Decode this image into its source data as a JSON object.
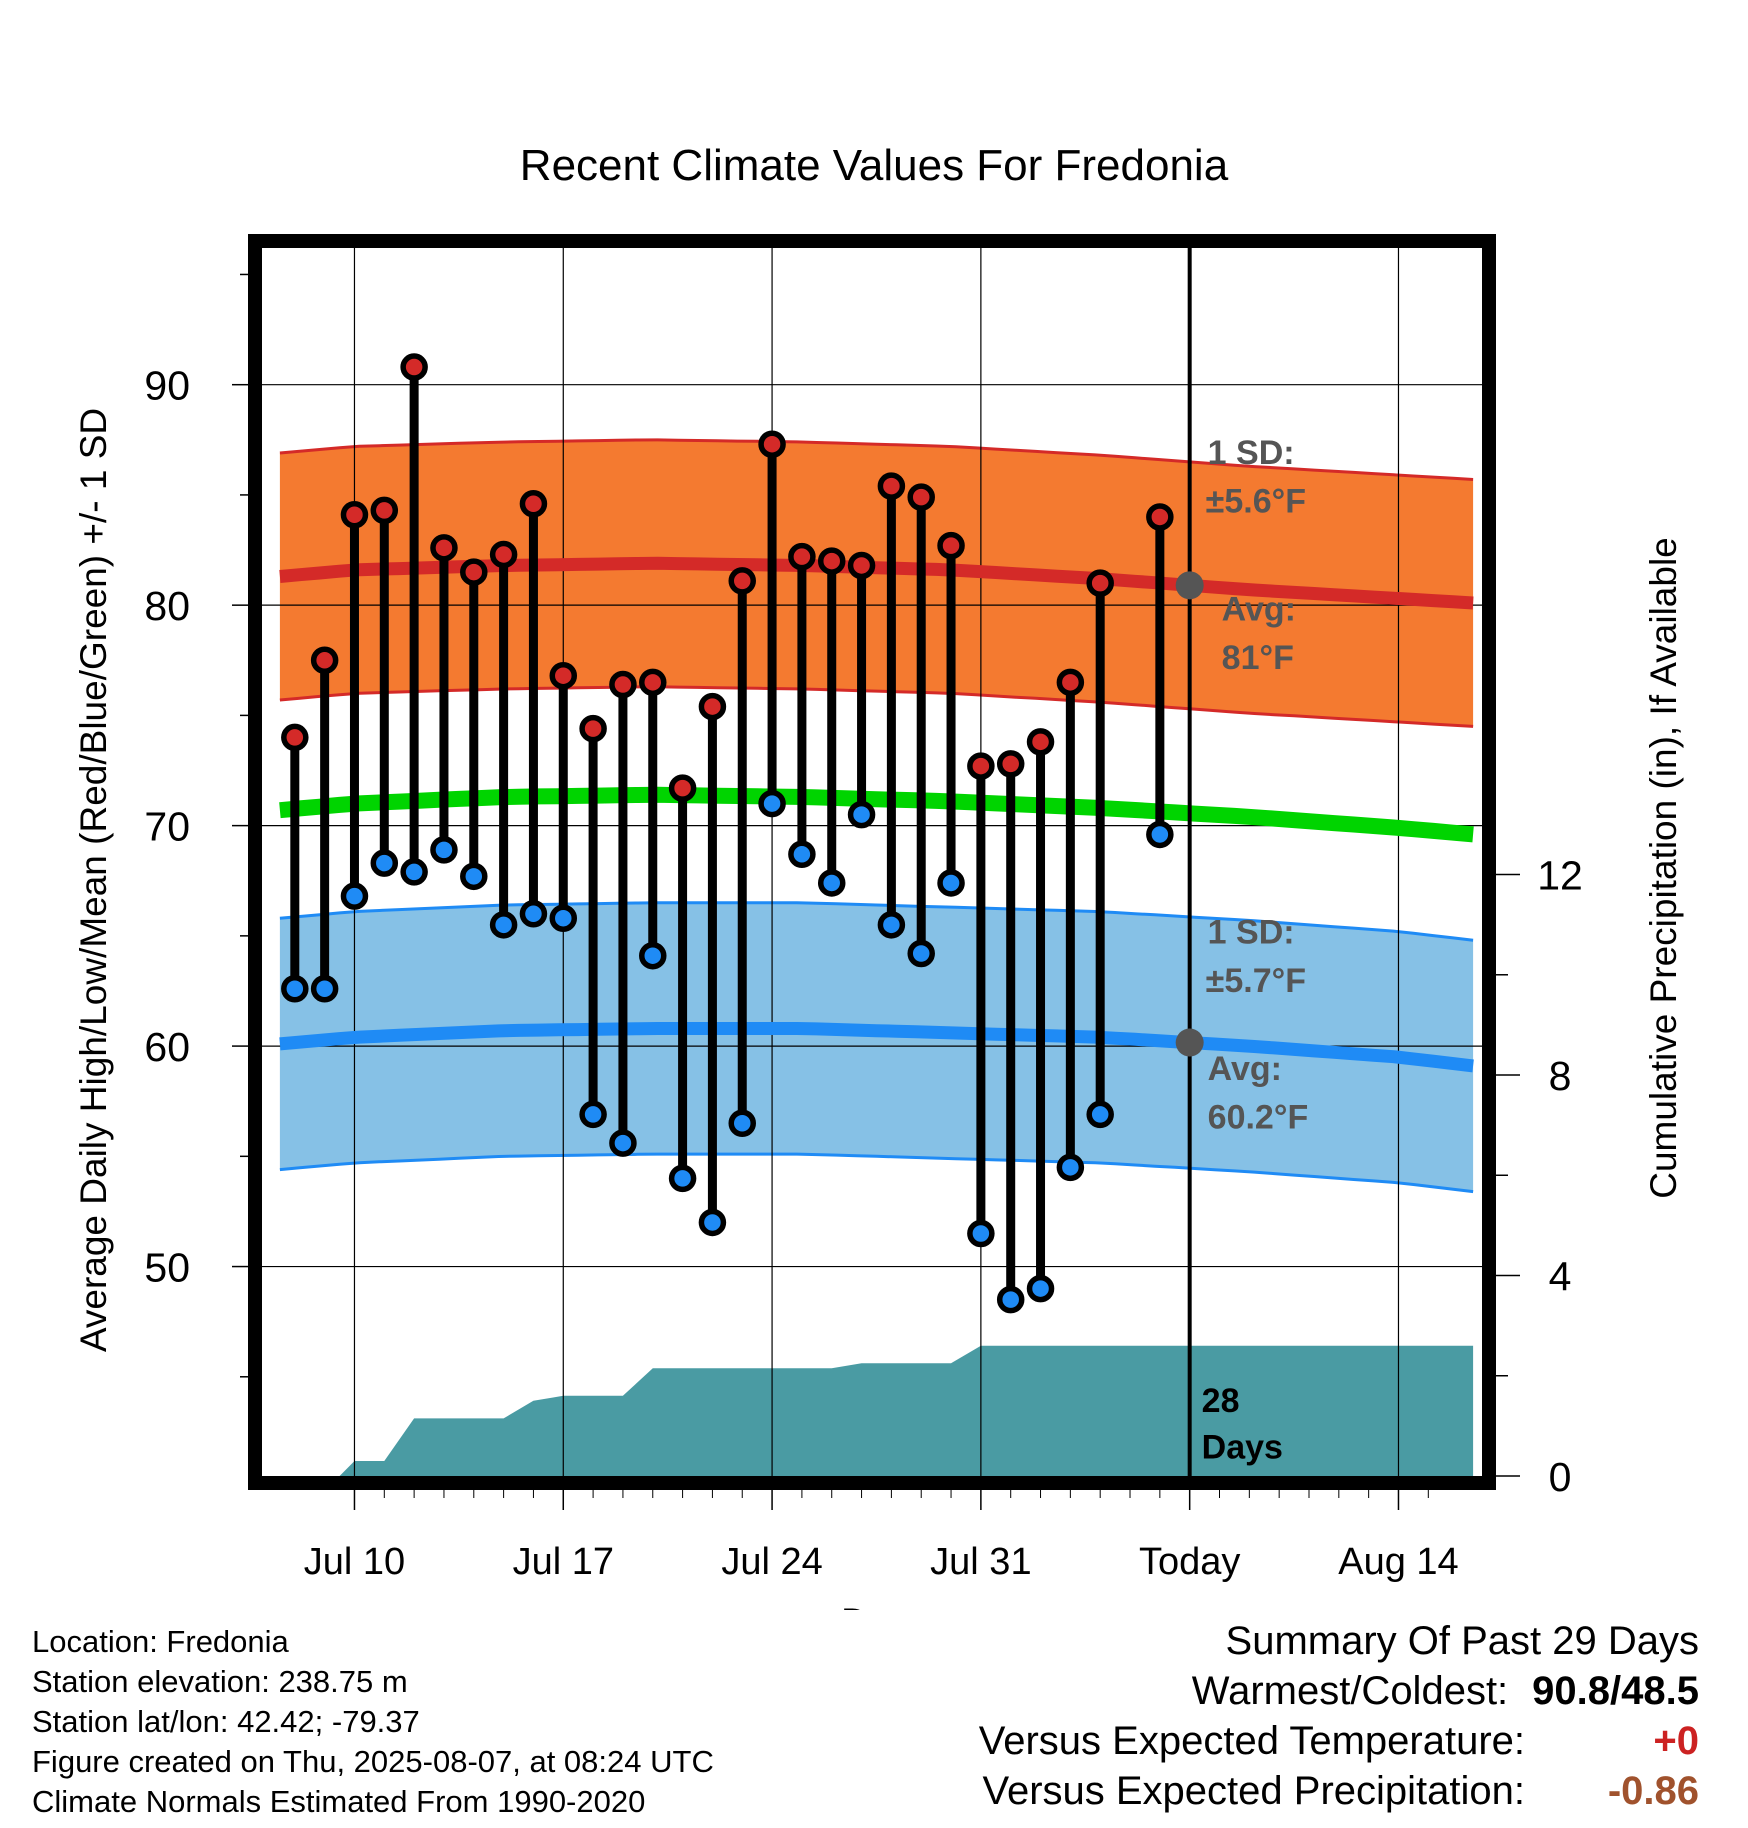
{
  "chart_data": {
    "type": "line",
    "title": "Recent Climate Values For Fredonia",
    "xlabel": "Day",
    "ylabel": "Average Daily High/Low/Mean (Red/Blue/Green) +/- 1 SD",
    "y2label": "Cumulative Precipitation (in), If Available",
    "xlim": [
      -3.1,
      37.8
    ],
    "ylim": [
      40.5,
      96.2
    ],
    "y2lim": [
      0,
      24.5
    ],
    "x_ticks": [
      {
        "x": 0,
        "label": "Jul 10"
      },
      {
        "x": 7,
        "label": "Jul 17"
      },
      {
        "x": 14,
        "label": "Jul 24"
      },
      {
        "x": 21,
        "label": "Jul 31"
      },
      {
        "x": 28,
        "label": "Today"
      },
      {
        "x": 35,
        "label": "Aug 14"
      }
    ],
    "y_ticks": [
      50,
      60,
      70,
      80,
      90
    ],
    "y2_ticks": [
      0,
      4,
      8,
      12
    ],
    "today_x": 28,
    "grid": true,
    "colors": {
      "high": "#d42a28",
      "high_band": "#f47a30",
      "low": "#1f8bf5",
      "low_band": "#86c1e6",
      "mean": "#00d400",
      "precip": "#4a9ba3",
      "marker_avg": "#555555"
    },
    "normals": {
      "x": [
        -2.5,
        0,
        5,
        10,
        15,
        20,
        25,
        30,
        35,
        37.5
      ],
      "high": [
        81.3,
        81.6,
        81.8,
        81.9,
        81.8,
        81.6,
        81.2,
        80.7,
        80.3,
        80.1
      ],
      "high_sd": 5.6,
      "low": [
        60.1,
        60.4,
        60.7,
        60.8,
        60.8,
        60.6,
        60.4,
        60.0,
        59.5,
        59.1
      ],
      "low_sd": 5.7,
      "mean": [
        70.7,
        71.0,
        71.3,
        71.4,
        71.3,
        71.1,
        70.8,
        70.4,
        69.9,
        69.6
      ]
    },
    "series": [
      {
        "name": "High",
        "x": [
          -2,
          -1,
          0,
          1,
          2,
          3,
          4,
          5,
          6,
          7,
          8,
          9,
          10,
          11,
          12,
          13,
          14,
          15,
          16,
          17,
          18,
          19,
          20,
          21,
          22,
          23,
          24,
          25,
          27
        ],
        "values": [
          74.0,
          77.5,
          84.1,
          84.3,
          90.8,
          82.6,
          81.5,
          82.3,
          84.6,
          76.8,
          74.4,
          76.4,
          76.5,
          71.7,
          75.4,
          81.1,
          87.3,
          82.2,
          82.0,
          81.8,
          85.4,
          84.9,
          82.7,
          72.7,
          72.8,
          73.8,
          76.5,
          81.0,
          84.0
        ]
      },
      {
        "name": "Low",
        "x": [
          -2,
          -1,
          0,
          1,
          2,
          3,
          4,
          5,
          6,
          7,
          8,
          9,
          10,
          11,
          12,
          13,
          14,
          15,
          16,
          17,
          18,
          19,
          20,
          21,
          22,
          23,
          24,
          25,
          27
        ],
        "values": [
          62.6,
          62.6,
          66.8,
          68.3,
          67.9,
          68.9,
          67.7,
          65.5,
          66.0,
          65.8,
          56.9,
          55.6,
          64.1,
          54.0,
          52.0,
          56.5,
          71.0,
          68.7,
          67.4,
          70.5,
          65.5,
          64.2,
          67.4,
          51.5,
          48.5,
          49.0,
          54.5,
          56.9,
          69.6
        ]
      },
      {
        "name": "Cumulative Precipitation",
        "x": [
          -2.5,
          -0.5,
          0,
          0.5,
          1,
          2,
          5,
          6,
          7,
          9,
          10,
          12,
          14,
          16,
          17,
          19,
          20,
          21,
          22,
          28,
          37.5
        ],
        "values": [
          0,
          0,
          0.3,
          0.3,
          0.3,
          1.15,
          1.15,
          1.5,
          1.6,
          1.6,
          2.15,
          2.15,
          2.15,
          2.15,
          2.25,
          2.25,
          2.25,
          2.6,
          2.6,
          2.6,
          2.6
        ]
      }
    ],
    "annotations": {
      "high_sd_label": "1 SD:",
      "high_sd_value": "±5.6°F",
      "high_avg_label": "Avg:",
      "high_avg_value": "81°F",
      "low_sd_label": "1 SD:",
      "low_sd_value": "±5.7°F",
      "low_avg_label": "Avg:",
      "low_avg_value": "60.2°F",
      "precip_days_num": "28",
      "precip_days_word": "Days"
    }
  },
  "footer": {
    "location": "Location: Fredonia",
    "elevation": "Station elevation: 238.75 m",
    "latlon": "Station lat/lon: 42.42; -79.37",
    "created": "Figure created on Thu, 2025-08-07, at 08:24 UTC",
    "normals": "Climate Normals Estimated From 1990-2020"
  },
  "summary": {
    "title": "Summary Of Past 29 Days",
    "warmest_label": "Warmest/Coldest:",
    "warmest_value": "90.8/48.5",
    "temp_label": "Versus Expected Temperature:",
    "temp_value": "+0",
    "temp_color": "#cc2222",
    "precip_label": "Versus Expected Precipitation:",
    "precip_value": "-0.86",
    "precip_color": "#a0522d"
  }
}
